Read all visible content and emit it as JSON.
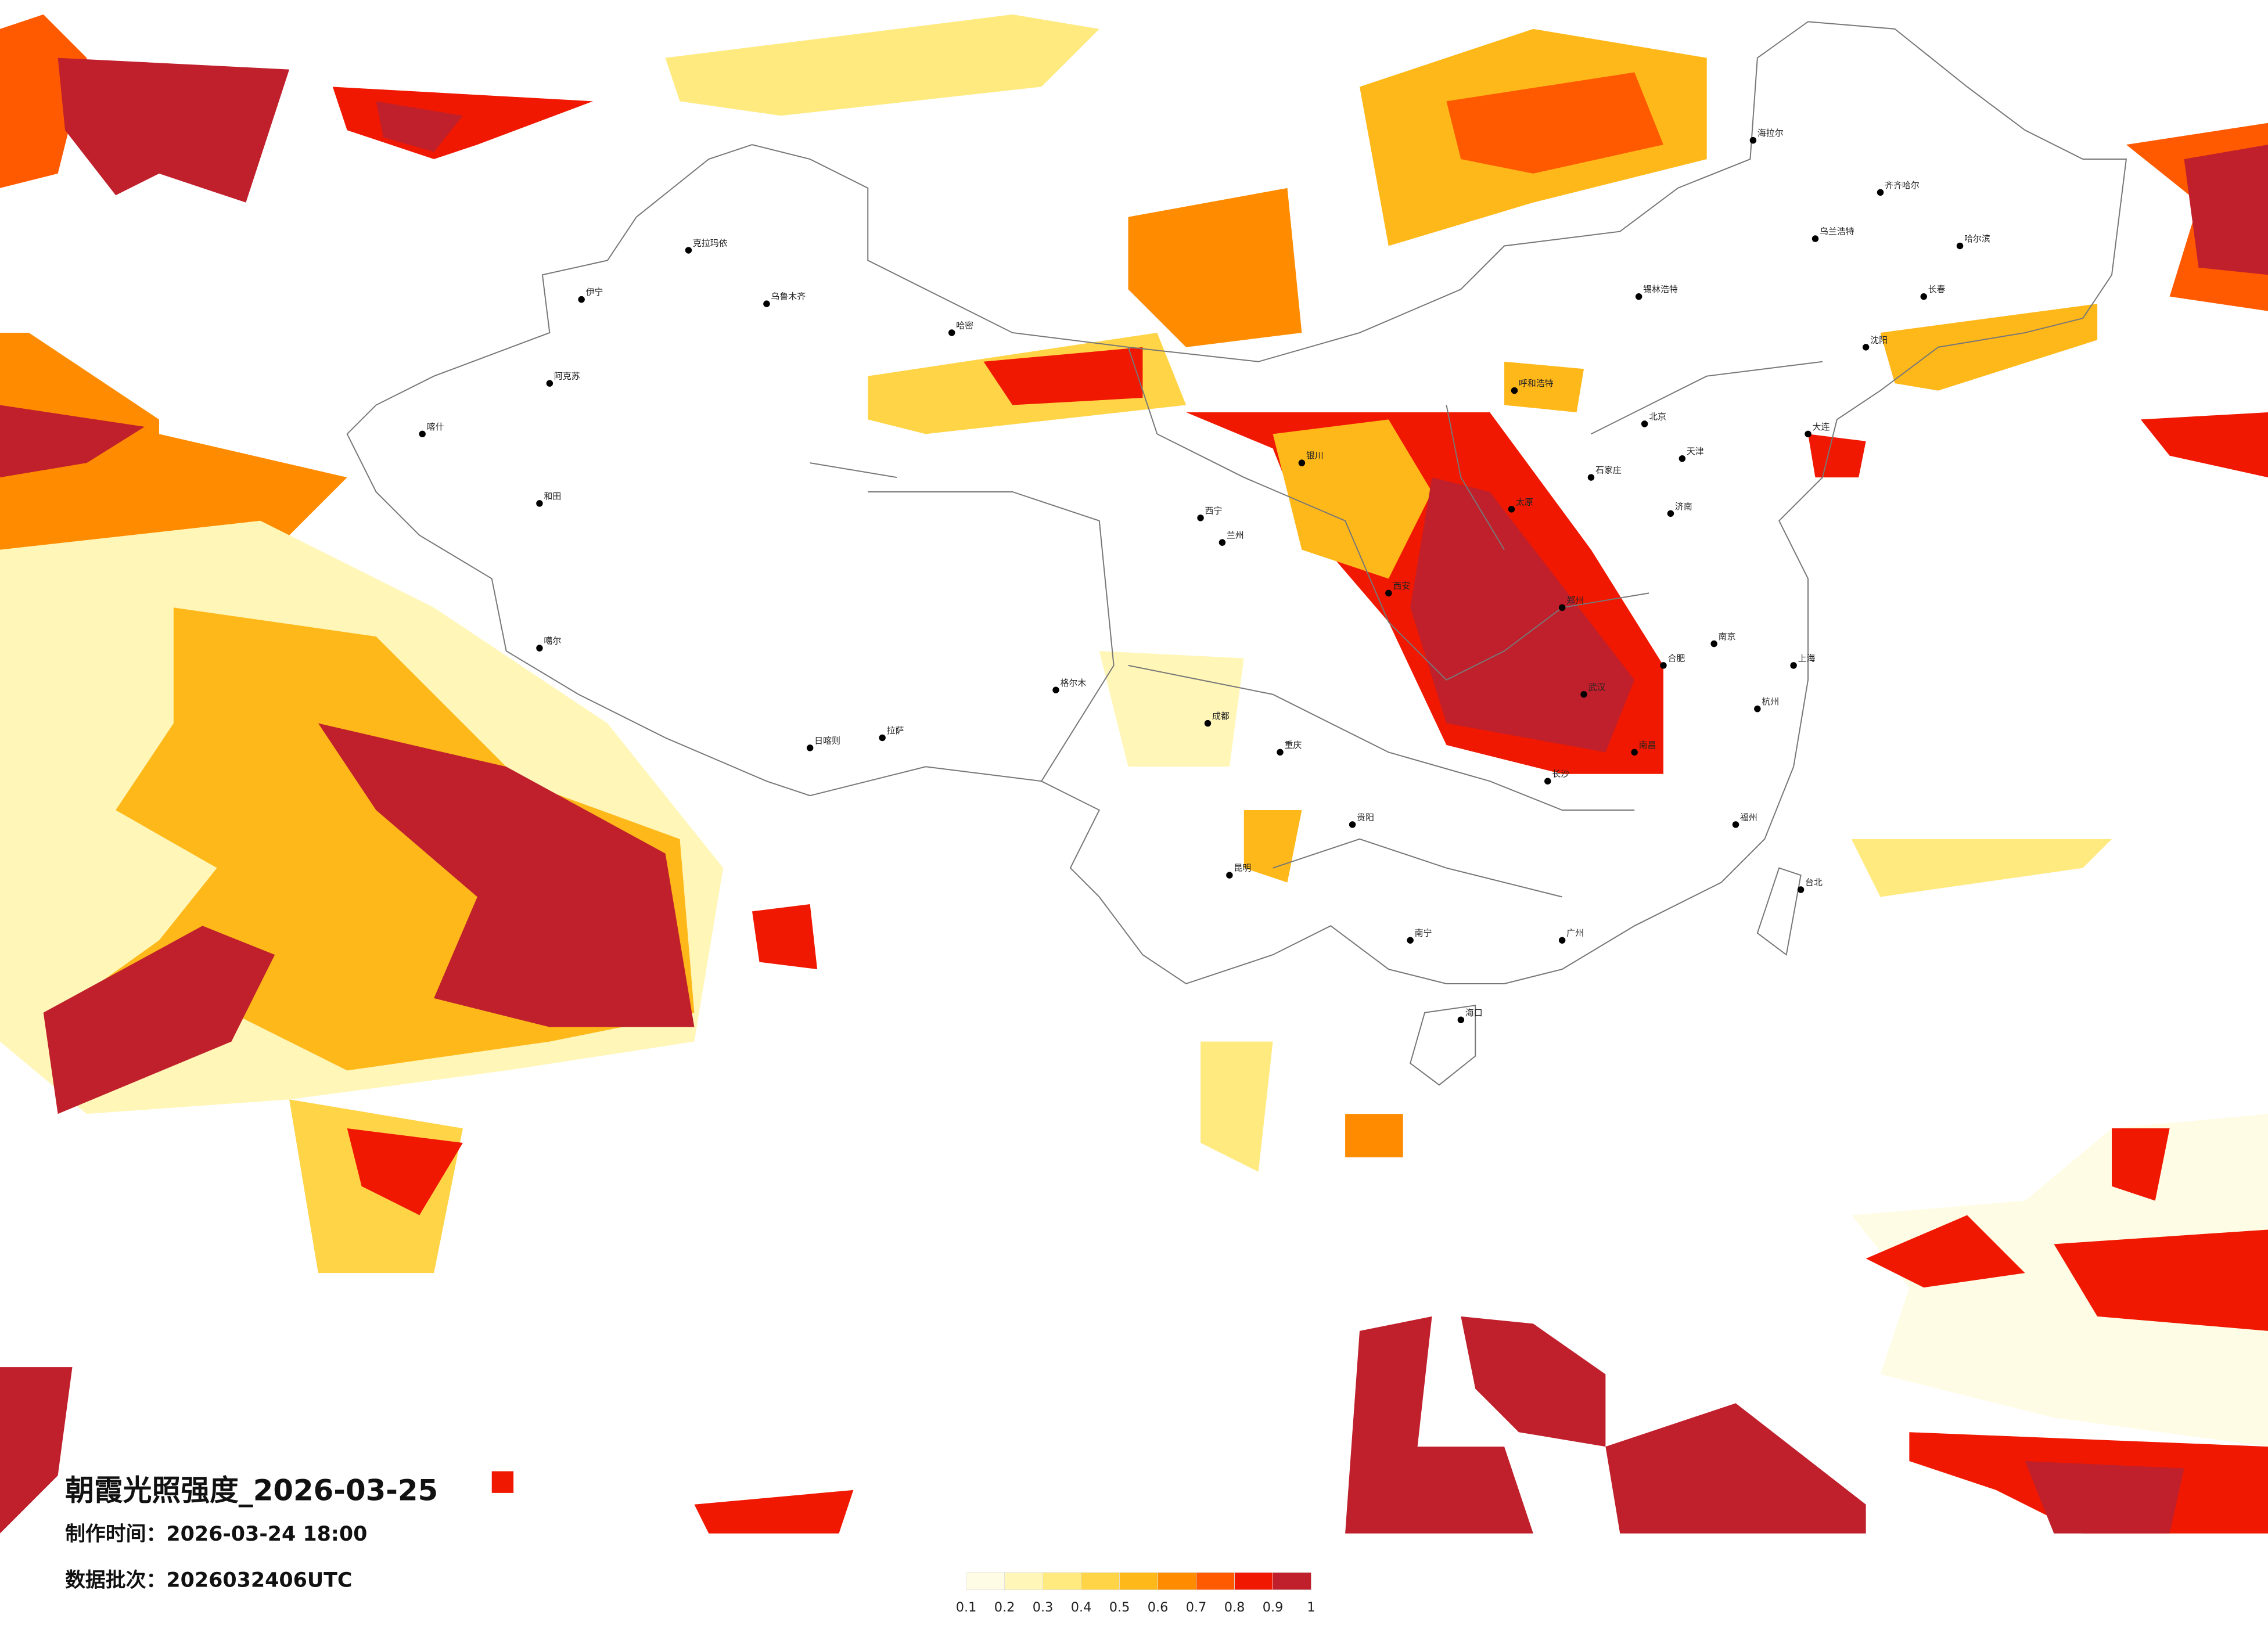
{
  "title": "朝霞光照强度_2026-03-25",
  "made_time": "制作时间：2026-03-24 18:00",
  "batch": "数据批次：2026032406UTC",
  "legend": {
    "ticks": [
      0.1,
      0.2,
      0.3,
      0.4,
      0.5,
      0.6,
      0.7,
      0.8,
      0.9,
      1
    ],
    "colors": [
      "#fffce6",
      "#fff6b8",
      "#ffea80",
      "#ffd447",
      "#ffb81a",
      "#ff8c00",
      "#ff5a00",
      "#f01800",
      "#c0202c"
    ]
  },
  "cities": [
    "克拉玛依",
    "乌鲁木齐",
    "伊宁",
    "阿克苏",
    "喀什",
    "和田",
    "哈密",
    "拉萨",
    "日喀则",
    "噶尔",
    "格尔木",
    "西宁",
    "兰州",
    "银川",
    "呼和浩特",
    "北京",
    "天津",
    "石家庄",
    "太原",
    "济南",
    "郑州",
    "西安",
    "成都",
    "重庆",
    "武汉",
    "长沙",
    "南昌",
    "合肥",
    "南京",
    "上海",
    "杭州",
    "福州",
    "广州",
    "南宁",
    "昆明",
    "贵阳",
    "海口",
    "台北",
    "哈尔滨",
    "长春",
    "沈阳",
    "大连",
    "齐齐哈尔",
    "海拉尔",
    "乌兰浩特",
    "锡林浩特"
  ]
}
